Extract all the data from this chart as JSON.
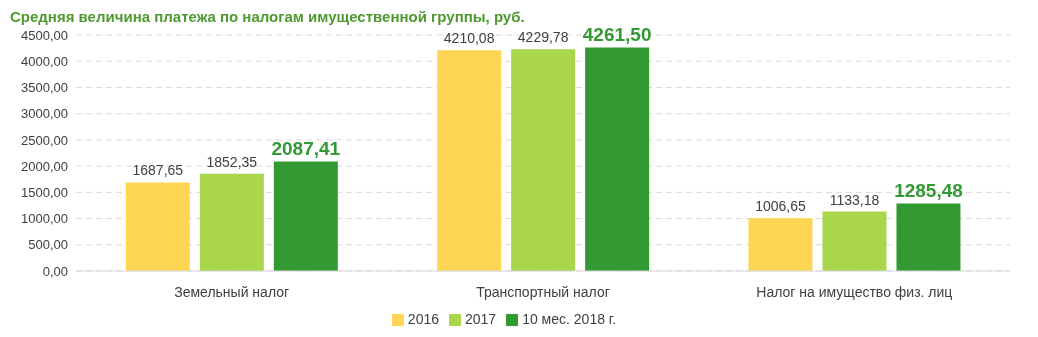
{
  "chart_data": {
    "type": "bar",
    "title": "Средняя величина платежа по налогам имущественной группы, руб.",
    "categories": [
      "Земельный налог",
      "Транспортный налог",
      "Налог на имущество физ. лиц"
    ],
    "series": [
      {
        "name": "2016",
        "color": "#ffd653",
        "values": [
          1687.65,
          4210.08,
          1006.65
        ],
        "value_labels": [
          "1687,65",
          "4210,08",
          "1006,65"
        ]
      },
      {
        "name": "2017",
        "color": "#a9d64b",
        "values": [
          1852.35,
          4229.78,
          1133.18
        ],
        "value_labels": [
          "1852,35",
          "4229,78",
          "1133,18"
        ]
      },
      {
        "name": "10 мес. 2018 г.",
        "color": "#339933",
        "values": [
          2087.41,
          4261.5,
          1285.48
        ],
        "value_labels": [
          "2087,41",
          "4261,50",
          "1285,48"
        ]
      }
    ],
    "ylim": [
      0,
      4500
    ],
    "yticks": [
      {
        "value": 0,
        "label": "0,00"
      },
      {
        "value": 500,
        "label": "500,00"
      },
      {
        "value": 1000,
        "label": "1000,00"
      },
      {
        "value": 1500,
        "label": "1500,00"
      },
      {
        "value": 2000,
        "label": "2000,00"
      },
      {
        "value": 2500,
        "label": "2500,00"
      },
      {
        "value": 3000,
        "label": "3000,00"
      },
      {
        "value": 3500,
        "label": "3500,00"
      },
      {
        "value": 4000,
        "label": "4000,00"
      },
      {
        "value": 4500,
        "label": "4500,00"
      }
    ],
    "grid": "y",
    "legend": "bottom"
  }
}
